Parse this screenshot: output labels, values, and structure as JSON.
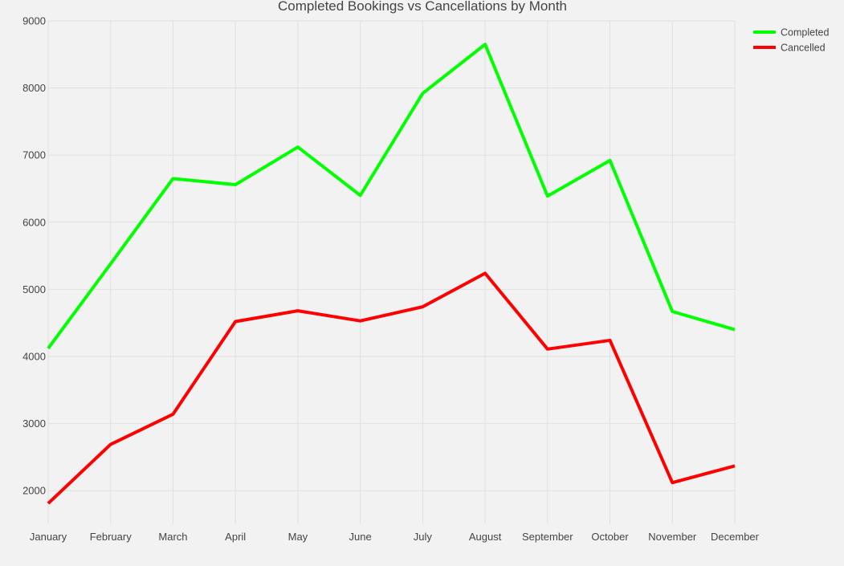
{
  "chart_data": {
    "type": "line",
    "title": "Completed Bookings vs Cancellations by Month",
    "xlabel": "",
    "ylabel": "",
    "categories": [
      "January",
      "February",
      "March",
      "April",
      "May",
      "June",
      "July",
      "August",
      "September",
      "October",
      "November",
      "December"
    ],
    "series": [
      {
        "name": "Completed",
        "color": "#00ff00",
        "values": [
          4120,
          5380,
          6650,
          6560,
          7120,
          6400,
          7920,
          8650,
          6390,
          6920,
          4670,
          4400
        ]
      },
      {
        "name": "Cancelled",
        "color": "#ff0000",
        "values": [
          1810,
          2690,
          3140,
          4520,
          4680,
          4530,
          4740,
          5240,
          4110,
          4240,
          2120,
          2370
        ]
      }
    ],
    "ylim": [
      1500,
      9000
    ],
    "yticks": [
      2000,
      3000,
      4000,
      5000,
      6000,
      7000,
      8000,
      9000
    ],
    "grid": true,
    "legend_position": "top-right"
  }
}
